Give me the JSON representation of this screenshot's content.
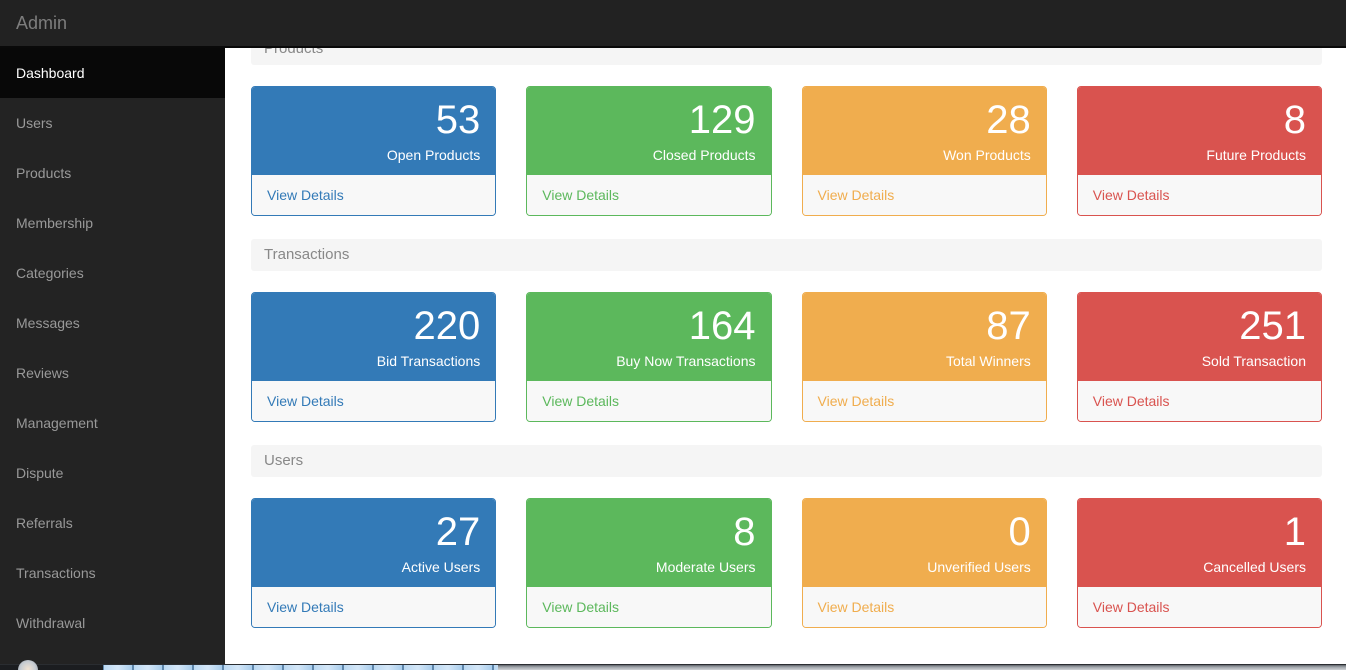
{
  "header": {
    "title": "Admin"
  },
  "sidebar": {
    "items": [
      {
        "label": "Dashboard",
        "active": true
      },
      {
        "label": "Users",
        "active": false
      },
      {
        "label": "Products",
        "active": false
      },
      {
        "label": "Membership",
        "active": false
      },
      {
        "label": "Categories",
        "active": false
      },
      {
        "label": "Messages",
        "active": false
      },
      {
        "label": "Reviews",
        "active": false
      },
      {
        "label": "Management",
        "active": false
      },
      {
        "label": "Dispute",
        "active": false
      },
      {
        "label": "Referrals",
        "active": false
      },
      {
        "label": "Transactions",
        "active": false
      },
      {
        "label": "Withdrawal",
        "active": false
      }
    ]
  },
  "sections": [
    {
      "title": "Products",
      "cards": [
        {
          "value": "53",
          "label": "Open Products",
          "link": "View Details",
          "theme": "primary",
          "color": "#337ab7"
        },
        {
          "value": "129",
          "label": "Closed Products",
          "link": "View Details",
          "theme": "success",
          "color": "#5cb85c"
        },
        {
          "value": "28",
          "label": "Won Products",
          "link": "View Details",
          "theme": "warning",
          "color": "#f0ad4e"
        },
        {
          "value": "8",
          "label": "Future Products",
          "link": "View Details",
          "theme": "danger",
          "color": "#d9534f"
        }
      ]
    },
    {
      "title": "Transactions",
      "cards": [
        {
          "value": "220",
          "label": "Bid Transactions",
          "link": "View Details",
          "theme": "primary",
          "color": "#337ab7"
        },
        {
          "value": "164",
          "label": "Buy Now Transactions",
          "link": "View Details",
          "theme": "success",
          "color": "#5cb85c"
        },
        {
          "value": "87",
          "label": "Total Winners",
          "link": "View Details",
          "theme": "warning",
          "color": "#f0ad4e"
        },
        {
          "value": "251",
          "label": "Sold Transaction",
          "link": "View Details",
          "theme": "danger",
          "color": "#d9534f"
        }
      ]
    },
    {
      "title": "Users",
      "cards": [
        {
          "value": "27",
          "label": "Active Users",
          "link": "View Details",
          "theme": "primary",
          "color": "#337ab7"
        },
        {
          "value": "8",
          "label": "Moderate Users",
          "link": "View Details",
          "theme": "success",
          "color": "#5cb85c"
        },
        {
          "value": "0",
          "label": "Unverified Users",
          "link": "View Details",
          "theme": "warning",
          "color": "#f0ad4e"
        },
        {
          "value": "1",
          "label": "Cancelled Users",
          "link": "View Details",
          "theme": "danger",
          "color": "#d9534f"
        }
      ]
    }
  ],
  "theme_colors": {
    "primary": "#337ab7",
    "success": "#5cb85c",
    "warning": "#f0ad4e",
    "danger": "#d9534f",
    "navbar_bg": "#222222",
    "sidebar_bg": "#232323",
    "active_item_bg": "#080808",
    "section_bar_bg": "#f5f5f5"
  }
}
